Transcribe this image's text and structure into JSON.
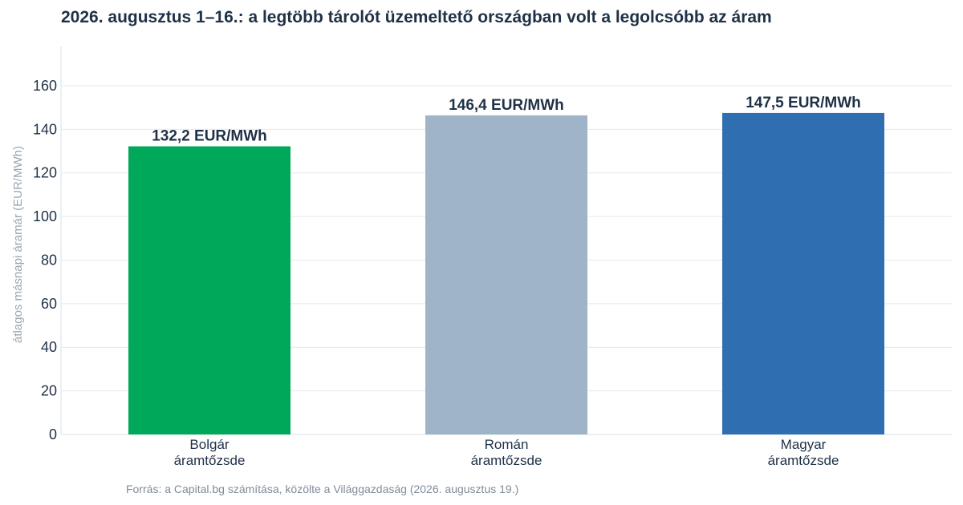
{
  "header": {
    "title": "2026. augusztus 1–16.: a legtöbb tárolót üzemeltető országban volt a legolcsóbb az áram"
  },
  "footer": {
    "source": "Forrás: a Capital.bg számítása, közölte a Világgazdaság (2026. augusztus 19.)"
  },
  "chart_data": {
    "type": "bar",
    "title": "2026. augusztus 1–16.: a legtöbb tárolót üzemeltető országban volt a legolcsóbb az áram",
    "xlabel": "",
    "ylabel": "átlagos másnapi áramár (EUR/MWh)",
    "ylim": [
      0,
      178
    ],
    "yticks": [
      0,
      20,
      40,
      60,
      80,
      100,
      120,
      140,
      160
    ],
    "grid": true,
    "categories": [
      [
        "Bolgár",
        "áramtőzsde"
      ],
      [
        "Román",
        "áramtőzsde"
      ],
      [
        "Magyar",
        "áramtőzsde"
      ]
    ],
    "values": [
      132.2,
      146.4,
      147.5
    ],
    "data_labels": [
      "132,2 EUR/MWh",
      "146,4 EUR/MWh",
      "147,5 EUR/MWh"
    ],
    "colors": [
      "#00a859",
      "#a0b4c8",
      "#2f6eb0"
    ]
  }
}
